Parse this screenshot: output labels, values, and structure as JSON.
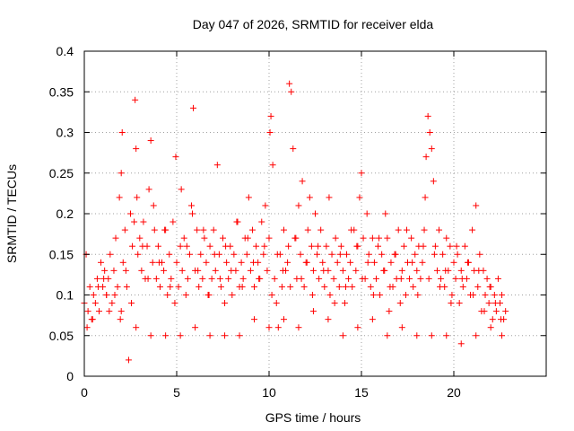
{
  "chart_data": {
    "type": "scatter",
    "title": "Day 047 of 2026, SRMTID for receiver elda",
    "xlabel": "GPS time / hours",
    "ylabel": "SRMTID / TECUs",
    "xlim": [
      0,
      25
    ],
    "ylim": [
      0,
      0.4
    ],
    "xticks": [
      0,
      5,
      10,
      15,
      20
    ],
    "xtick_labels": [
      "0",
      "5",
      "10",
      "15",
      "20"
    ],
    "yticks": [
      0,
      0.05,
      0.1,
      0.15,
      0.2,
      0.25,
      0.3,
      0.35,
      0.4
    ],
    "ytick_labels": [
      "0",
      "0.05",
      "0.1",
      "0.15",
      "0.2",
      "0.25",
      "0.3",
      "0.35",
      "0.4"
    ],
    "grid": true,
    "marker": "+",
    "color": "#ff0000",
    "series": [
      {
        "name": "SRMTID",
        "x": [
          0.0,
          0.1,
          0.2,
          0.3,
          0.4,
          0.5,
          0.6,
          0.7,
          0.8,
          0.9,
          1.0,
          1.1,
          1.2,
          1.3,
          1.4,
          1.5,
          1.6,
          1.7,
          1.8,
          1.9,
          2.0,
          2.05,
          2.1,
          2.2,
          2.3,
          2.4,
          2.5,
          2.6,
          2.7,
          2.75,
          2.8,
          2.85,
          2.9,
          3.0,
          3.1,
          3.2,
          3.3,
          3.4,
          3.5,
          3.6,
          3.7,
          3.8,
          3.9,
          4.0,
          4.1,
          4.2,
          4.3,
          4.4,
          4.5,
          4.6,
          4.7,
          4.8,
          4.9,
          5.0,
          5.1,
          5.2,
          5.3,
          5.4,
          5.5,
          5.6,
          5.7,
          5.8,
          5.9,
          6.0,
          6.1,
          6.2,
          6.3,
          6.4,
          6.5,
          6.6,
          6.7,
          6.8,
          6.9,
          7.0,
          7.1,
          7.2,
          7.3,
          7.4,
          7.5,
          7.6,
          7.7,
          7.8,
          7.9,
          8.0,
          8.1,
          8.2,
          8.3,
          8.4,
          8.5,
          8.6,
          8.7,
          8.8,
          8.9,
          9.0,
          9.1,
          9.2,
          9.3,
          9.4,
          9.5,
          9.6,
          9.7,
          9.8,
          9.9,
          10.0,
          10.05,
          10.1,
          10.2,
          10.3,
          10.4,
          10.5,
          10.6,
          10.7,
          10.8,
          10.9,
          11.0,
          11.05,
          11.1,
          11.2,
          11.3,
          11.4,
          11.5,
          11.6,
          11.7,
          11.8,
          11.9,
          12.0,
          12.1,
          12.2,
          12.3,
          12.4,
          12.5,
          12.6,
          12.7,
          12.8,
          12.9,
          13.0,
          13.1,
          13.2,
          13.3,
          13.4,
          13.5,
          13.6,
          13.7,
          13.8,
          13.9,
          14.0,
          14.1,
          14.2,
          14.3,
          14.4,
          14.5,
          14.6,
          14.7,
          14.8,
          14.9,
          15.0,
          15.1,
          15.2,
          15.3,
          15.4,
          15.5,
          15.6,
          15.7,
          15.8,
          15.9,
          16.0,
          16.1,
          16.2,
          16.3,
          16.4,
          16.5,
          16.6,
          16.7,
          16.8,
          16.9,
          17.0,
          17.1,
          17.2,
          17.3,
          17.4,
          17.5,
          17.6,
          17.7,
          17.8,
          17.9,
          18.0,
          18.1,
          18.2,
          18.3,
          18.4,
          18.45,
          18.5,
          18.6,
          18.7,
          18.8,
          18.9,
          19.0,
          19.1,
          19.2,
          19.3,
          19.4,
          19.5,
          19.6,
          19.7,
          19.8,
          19.9,
          20.0,
          20.1,
          20.2,
          20.3,
          20.4,
          20.5,
          20.6,
          20.7,
          20.8,
          20.9,
          21.0,
          21.1,
          21.2,
          21.3,
          21.4,
          21.5,
          21.6,
          21.7,
          21.8,
          21.9,
          22.0,
          22.1,
          22.2,
          22.3,
          22.4,
          22.5,
          22.6,
          22.7,
          22.8,
          0.15,
          0.45,
          0.75,
          1.05,
          1.35,
          1.65,
          1.95,
          2.25,
          2.55,
          3.15,
          3.45,
          3.75,
          4.05,
          4.35,
          4.65,
          4.95,
          5.25,
          5.55,
          5.85,
          6.15,
          6.45,
          6.75,
          7.05,
          7.35,
          7.65,
          7.95,
          8.25,
          8.55,
          8.85,
          9.15,
          9.45,
          9.75,
          10.15,
          10.45,
          10.75,
          11.15,
          11.45,
          11.75,
          12.05,
          12.35,
          12.65,
          12.95,
          13.25,
          13.55,
          13.85,
          14.15,
          14.45,
          14.75,
          15.05,
          15.35,
          15.65,
          15.95,
          16.25,
          16.55,
          16.85,
          17.15,
          17.45,
          17.75,
          18.05,
          18.35,
          18.65,
          18.95,
          19.25,
          19.55,
          19.85,
          20.15,
          20.45,
          20.75,
          21.05,
          21.35,
          21.65,
          21.95,
          22.25,
          22.55,
          1.2,
          2.0,
          2.8,
          3.6,
          4.4,
          5.2,
          6.0,
          6.8,
          7.6,
          8.4,
          9.2,
          10.0,
          10.8,
          11.6,
          12.4,
          13.2,
          14.0,
          14.8,
          15.6,
          16.4,
          17.2,
          18.0,
          18.8,
          19.6,
          20.4,
          21.2,
          22.0,
          22.6
        ],
        "y": [
          0.09,
          0.15,
          0.08,
          0.11,
          0.07,
          0.1,
          0.09,
          0.12,
          0.08,
          0.14,
          0.11,
          0.13,
          0.1,
          0.12,
          0.15,
          0.09,
          0.13,
          0.17,
          0.11,
          0.22,
          0.25,
          0.3,
          0.14,
          0.18,
          0.11,
          0.02,
          0.2,
          0.16,
          0.19,
          0.34,
          0.28,
          0.22,
          0.15,
          0.17,
          0.13,
          0.19,
          0.12,
          0.16,
          0.23,
          0.29,
          0.14,
          0.18,
          0.12,
          0.16,
          0.11,
          0.14,
          0.13,
          0.18,
          0.1,
          0.15,
          0.12,
          0.19,
          0.09,
          0.14,
          0.11,
          0.16,
          0.13,
          0.17,
          0.1,
          0.12,
          0.15,
          0.21,
          0.33,
          0.13,
          0.18,
          0.11,
          0.15,
          0.12,
          0.17,
          0.14,
          0.1,
          0.16,
          0.12,
          0.18,
          0.13,
          0.26,
          0.15,
          0.11,
          0.17,
          0.09,
          0.14,
          0.12,
          0.16,
          0.1,
          0.15,
          0.13,
          0.19,
          0.11,
          0.14,
          0.12,
          0.17,
          0.15,
          0.22,
          0.13,
          0.18,
          0.11,
          0.16,
          0.14,
          0.12,
          0.19,
          0.15,
          0.21,
          0.13,
          0.17,
          0.3,
          0.32,
          0.26,
          0.12,
          0.09,
          0.06,
          0.15,
          0.11,
          0.18,
          0.13,
          0.14,
          0.16,
          0.36,
          0.35,
          0.28,
          0.17,
          0.12,
          0.21,
          0.15,
          0.24,
          0.11,
          0.14,
          0.18,
          0.22,
          0.16,
          0.13,
          0.2,
          0.15,
          0.12,
          0.18,
          0.14,
          0.11,
          0.16,
          0.13,
          0.1,
          0.15,
          0.12,
          0.17,
          0.14,
          0.11,
          0.16,
          0.13,
          0.09,
          0.15,
          0.12,
          0.14,
          0.11,
          0.18,
          0.13,
          0.16,
          0.22,
          0.25,
          0.17,
          0.12,
          0.2,
          0.15,
          0.11,
          0.17,
          0.14,
          0.12,
          0.16,
          0.1,
          0.15,
          0.13,
          0.2,
          0.17,
          0.08,
          0.14,
          0.11,
          0.15,
          0.12,
          0.18,
          0.09,
          0.13,
          0.16,
          0.1,
          0.14,
          0.12,
          0.17,
          0.11,
          0.15,
          0.13,
          0.16,
          0.12,
          0.14,
          0.18,
          0.22,
          0.27,
          0.32,
          0.3,
          0.28,
          0.24,
          0.16,
          0.13,
          0.18,
          0.12,
          0.15,
          0.11,
          0.17,
          0.13,
          0.16,
          0.1,
          0.14,
          0.12,
          0.15,
          0.09,
          0.13,
          0.11,
          0.16,
          0.12,
          0.14,
          0.1,
          0.18,
          0.13,
          0.21,
          0.11,
          0.15,
          0.08,
          0.13,
          0.1,
          0.12,
          0.09,
          0.11,
          0.07,
          0.1,
          0.08,
          0.12,
          0.09,
          0.1,
          0.07,
          0.08,
          0.06,
          0.07,
          0.11,
          0.12,
          0.08,
          0.1,
          0.07,
          0.13,
          0.09,
          0.16,
          0.12,
          0.21,
          0.14,
          0.18,
          0.11,
          0.27,
          0.23,
          0.16,
          0.2,
          0.13,
          0.18,
          0.1,
          0.15,
          0.12,
          0.16,
          0.13,
          0.19,
          0.11,
          0.17,
          0.14,
          0.12,
          0.16,
          0.1,
          0.15,
          0.13,
          0.11,
          0.17,
          0.12,
          0.14,
          0.1,
          0.16,
          0.13,
          0.22,
          0.09,
          0.15,
          0.11,
          0.18,
          0.16,
          0.12,
          0.14,
          0.1,
          0.17,
          0.13,
          0.11,
          0.15,
          0.12,
          0.18,
          0.14,
          0.1,
          0.16,
          0.12,
          0.15,
          0.11,
          0.13,
          0.09,
          0.16,
          0.12,
          0.14,
          0.1,
          0.13,
          0.08,
          0.11,
          0.09,
          0.07,
          0.1,
          0.08,
          0.06,
          0.05,
          0.05,
          0.05,
          0.06,
          0.05,
          0.05,
          0.05,
          0.07,
          0.06,
          0.07,
          0.06,
          0.08,
          0.07,
          0.05,
          0.06,
          0.07,
          0.05,
          0.06,
          0.05,
          0.05,
          0.05,
          0.04,
          0.05,
          0.06,
          0.05
        ]
      }
    ]
  }
}
